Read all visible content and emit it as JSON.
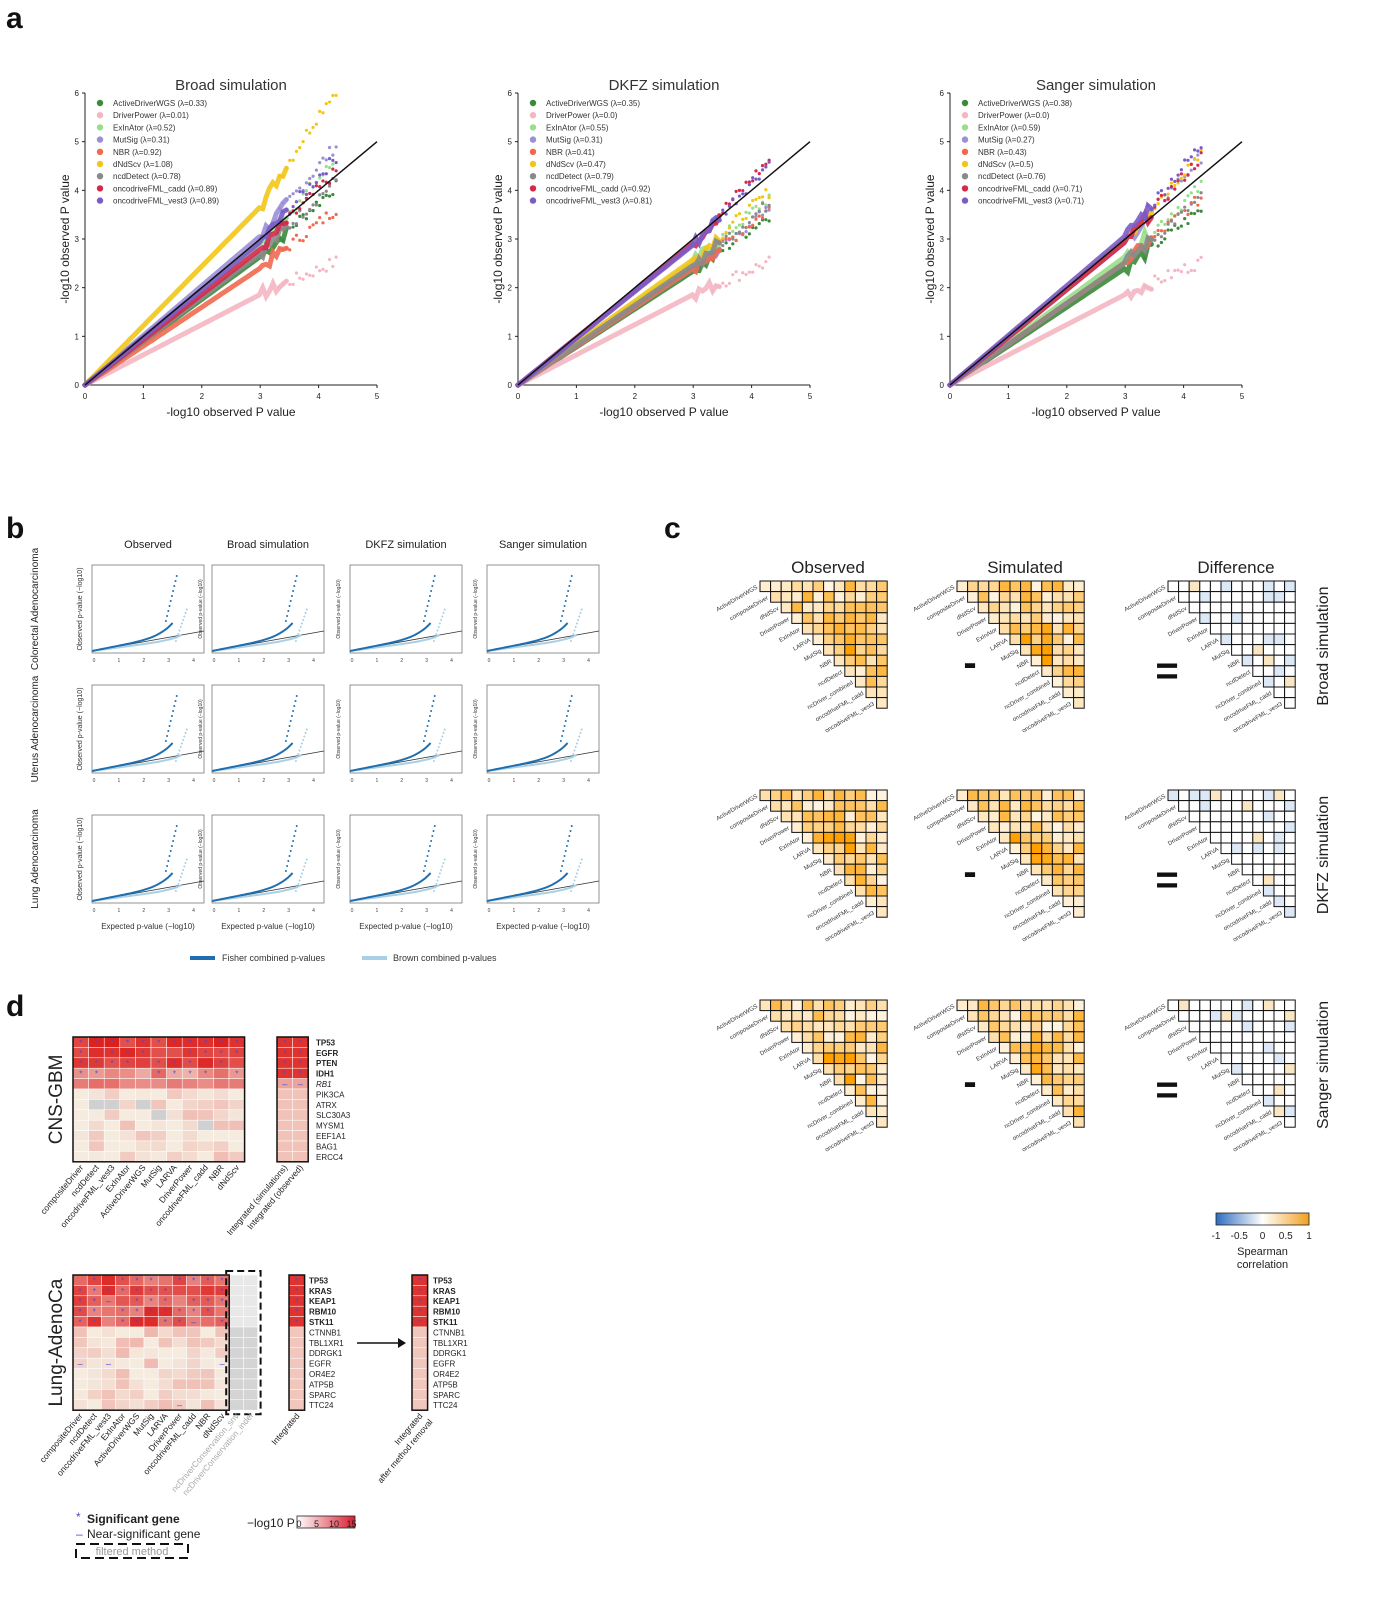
{
  "panel_labels": {
    "a": "a",
    "b": "b",
    "c": "c",
    "d": "d"
  },
  "panel_a": {
    "ylabel": "-log10 observed P value",
    "xlabel": "-log10 observed P value",
    "xticks": [
      "0",
      "1",
      "2",
      "3",
      "4",
      "5"
    ],
    "yticks": [
      "0",
      "1",
      "2",
      "3",
      "4",
      "5",
      "6"
    ],
    "plots": [
      {
        "title": "Broad simulation",
        "legend": [
          "ActiveDriverWGS (λ=0.33)",
          "DriverPower (λ=0.01)",
          "ExInAtor (λ=0.52)",
          "MutSig (λ=0.31)",
          "NBR (λ=0.92)",
          "dNdScv (λ=1.08)",
          "ncdDetect (λ=0.78)",
          "oncodriveFML_cadd (λ=0.89)",
          "oncodriveFML_vest3 (λ=0.89)"
        ]
      },
      {
        "title": "DKFZ simulation",
        "legend": [
          "ActiveDriverWGS (λ=0.35)",
          "DriverPower (λ=0.0)",
          "ExInAtor (λ=0.55)",
          "MutSig (λ=0.31)",
          "NBR (λ=0.41)",
          "dNdScv (λ=0.47)",
          "ncdDetect (λ=0.79)",
          "oncodriveFML_cadd (λ=0.92)",
          "oncodriveFML_vest3 (λ=0.81)"
        ]
      },
      {
        "title": "Sanger simulation",
        "legend": [
          "ActiveDriverWGS (λ=0.38)",
          "DriverPower (λ=0.0)",
          "ExInAtor (λ=0.59)",
          "MutSig (λ=0.27)",
          "NBR (λ=0.43)",
          "dNdScv (λ=0.5)",
          "ncdDetect (λ=0.76)",
          "oncodriveFML_cadd (λ=0.71)",
          "oncodriveFML_vest3 (λ=0.71)"
        ]
      }
    ],
    "colors": [
      "#3a8a3a",
      "#f4b6c2",
      "#98df8a",
      "#9b8fd6",
      "#f06a50",
      "#f2c618",
      "#8a8a8a",
      "#d42a4a",
      "#7a5cc8"
    ]
  },
  "panel_b": {
    "columns": [
      "Observed",
      "Broad simulation",
      "DKFZ simulation",
      "Sanger simulation"
    ],
    "rows": [
      "Colorectal Adenocarcinoma",
      "Uterus Adenocarcinoma",
      "Lung Adenocarcinoma"
    ],
    "row_ylabel": "Observed p-value (−log10)",
    "xlabel_left": "Expected p-value (−log10)",
    "xlabel_others": "Expected p-value (−log10)",
    "legend": [
      "Fisher combined p-values",
      "Brown combined p-values"
    ],
    "legend_colors": [
      "#1f6fb0",
      "#a8cfe6"
    ]
  },
  "panel_c": {
    "headers": [
      "Observed",
      "Simulated",
      "Difference"
    ],
    "operators": [
      "-",
      "="
    ],
    "row_labels": [
      "Broad simulation",
      "DKFZ simulation",
      "Sanger simulation"
    ],
    "methods": [
      "ActiveDriverWGS",
      "compositeDriver",
      "dNdScv",
      "DriverPower",
      "ExInAtor",
      "LARVA",
      "MutSig",
      "NBR",
      "ncdDetect",
      "ncDriver_combined",
      "oncodriveFML_cadd",
      "oncodriveFML_vest3"
    ],
    "colorbar_ticks": [
      "-1",
      "-0.5",
      "0",
      "0.5",
      "1"
    ],
    "colorbar_label": "Spearman correlation"
  },
  "panel_d": {
    "gbm": {
      "title": "CNS-GBM",
      "methods": [
        "compositeDriver",
        "ncdDetect",
        "oncodriveFML_vest3",
        "ExInAtor",
        "ActiveDriverWGS",
        "MutSig",
        "LARVA",
        "DriverPower",
        "oncodriveFML_cadd",
        "NBR",
        "dNdScv"
      ],
      "integrated_cols": [
        "Integrated (simulations)",
        "Integrated (observed)"
      ],
      "genes": [
        "TP53",
        "EGFR",
        "PTEN",
        "IDH1",
        "RB1",
        "PIK3CA",
        "ATRX",
        "SLC30A3",
        "MYSM1",
        "EEF1A1",
        "BAG1",
        "ERCC4"
      ]
    },
    "lung": {
      "title": "Lung-AdenoCa",
      "methods": [
        "compositeDriver",
        "ncdDetect",
        "oncodriveFML_vest3",
        "ExInAtor",
        "ActiveDriverWGS",
        "MutSig",
        "LARVA",
        "DriverPower",
        "oncodriveFML_cadd",
        "NBR",
        "dNdScv",
        "ncDriverConservation_snv",
        "ncDriverConservation_indel"
      ],
      "integrated_col": "Integrated",
      "after_col": "Integrated after method removal",
      "genes": [
        "TP53",
        "KRAS",
        "KEAP1",
        "RBM10",
        "STK11",
        "CTNNB1",
        "TBL1XR1",
        "DDRGK1",
        "EGFR",
        "OR4E2",
        "ATP5B",
        "SPARC",
        "TTC24"
      ]
    },
    "legend": {
      "significant": "Significant gene",
      "near": "Near-significant gene",
      "filtered": "filtered method",
      "scale_label": "−log10 P",
      "scale_ticks": [
        "0",
        "5",
        "10",
        "15"
      ]
    }
  }
}
